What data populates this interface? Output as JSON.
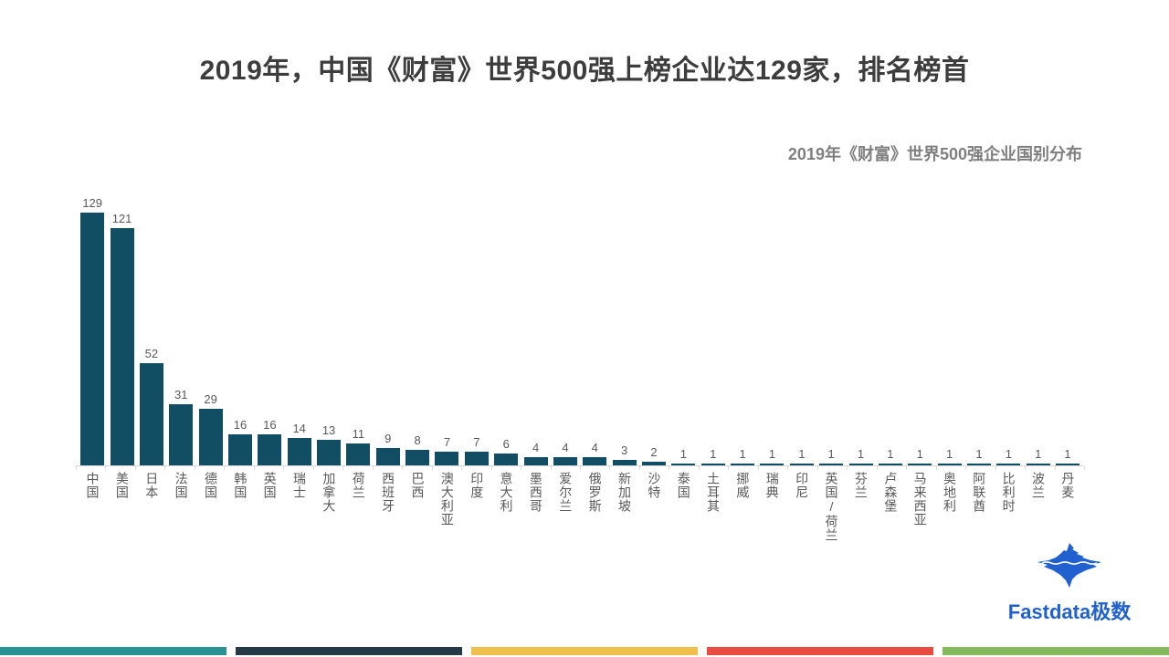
{
  "page": {
    "title": "2019年，中国《财富》世界500强上榜企业达129家，排名榜首"
  },
  "chart_data": {
    "type": "bar",
    "title": "2019年《财富》世界500强企业国别分布",
    "categories": [
      "中国",
      "美国",
      "日本",
      "法国",
      "德国",
      "韩国",
      "英国",
      "瑞士",
      "加拿大",
      "荷兰",
      "西班牙",
      "巴西",
      "澳大利亚",
      "印度",
      "意大利",
      "墨西哥",
      "爱尔兰",
      "俄罗斯",
      "新加坡",
      "沙特",
      "泰国",
      "土耳其",
      "挪威",
      "瑞典",
      "印尼",
      "英国/荷兰",
      "芬兰",
      "卢森堡",
      "马来西亚",
      "奥地利",
      "阿联酋",
      "比利时",
      "波兰",
      "丹麦"
    ],
    "values": [
      129,
      121,
      52,
      31,
      29,
      16,
      16,
      14,
      13,
      11,
      9,
      8,
      7,
      7,
      6,
      4,
      4,
      4,
      3,
      2,
      1,
      1,
      1,
      1,
      1,
      1,
      1,
      1,
      1,
      1,
      1,
      1,
      1,
      1
    ],
    "ymax": 129,
    "data_labels": true,
    "grid": false,
    "legend": false,
    "bar_color": "#114e63",
    "value_label_color": "#595959",
    "category_label_color": "#595959",
    "axis_color": "#d9d9d9"
  },
  "logo": {
    "text": "Fastdata极数",
    "color": "#2161cf",
    "icon": "iceberg-icon"
  },
  "footer": {
    "stripe_colors": [
      "#2a9292",
      "#263947",
      "#efc04b",
      "#e84c41",
      "#83ba5b"
    ]
  }
}
